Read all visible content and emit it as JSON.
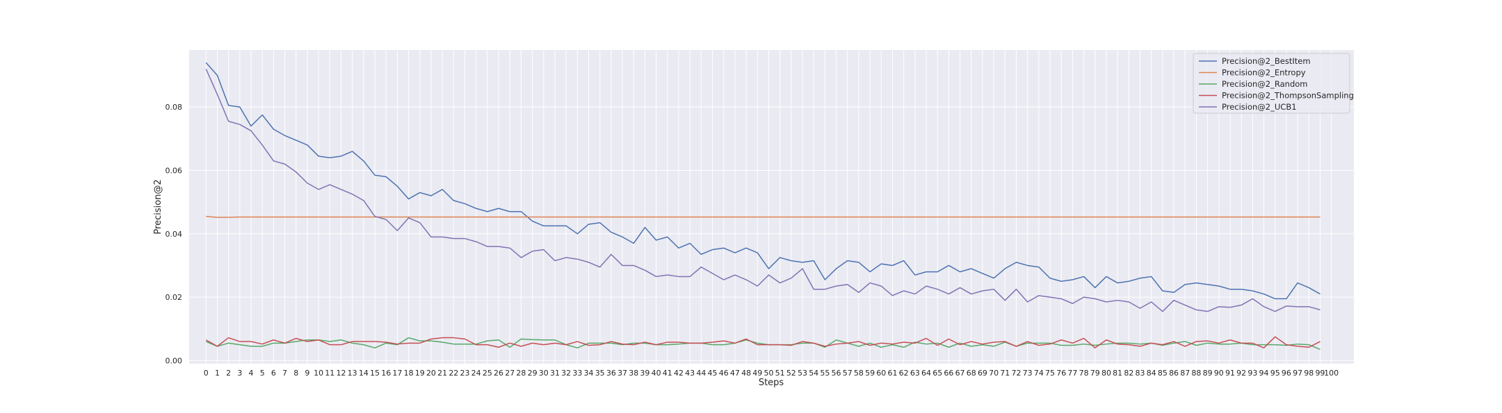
{
  "chart_data": {
    "type": "line",
    "xlabel": "Steps",
    "ylabel": "Precision@2",
    "xlim": [
      -1.5,
      102
    ],
    "ylim": [
      -0.001,
      0.098
    ],
    "x_ticks": [
      0,
      1,
      2,
      3,
      4,
      5,
      6,
      7,
      8,
      9,
      10,
      11,
      12,
      13,
      14,
      15,
      16,
      17,
      18,
      19,
      20,
      21,
      22,
      23,
      24,
      25,
      26,
      27,
      28,
      29,
      30,
      31,
      32,
      33,
      34,
      35,
      36,
      37,
      38,
      39,
      40,
      41,
      42,
      43,
      44,
      45,
      46,
      47,
      48,
      49,
      50,
      51,
      52,
      53,
      54,
      55,
      56,
      57,
      58,
      59,
      60,
      61,
      62,
      63,
      64,
      65,
      66,
      67,
      68,
      69,
      70,
      71,
      72,
      73,
      74,
      75,
      76,
      77,
      78,
      79,
      80,
      81,
      82,
      83,
      84,
      85,
      86,
      87,
      88,
      89,
      90,
      91,
      92,
      93,
      94,
      95,
      96,
      97,
      98,
      99,
      100
    ],
    "y_ticks": [
      0.0,
      0.02,
      0.04,
      0.06,
      0.08
    ],
    "y_tick_labels": [
      "0.00",
      "0.02",
      "0.04",
      "0.06",
      "0.08"
    ],
    "grid": true,
    "legend_position": "top-right",
    "background": "#eaeaf2",
    "series": [
      {
        "name": "Precision@2_BestItem",
        "color": "#4c72b0",
        "values": [
          0.094,
          0.09,
          0.0805,
          0.08,
          0.074,
          0.0775,
          0.073,
          0.071,
          0.0695,
          0.068,
          0.0645,
          0.064,
          0.0645,
          0.066,
          0.063,
          0.0585,
          0.058,
          0.055,
          0.051,
          0.053,
          0.052,
          0.054,
          0.0505,
          0.0495,
          0.048,
          0.047,
          0.048,
          0.047,
          0.047,
          0.044,
          0.0425,
          0.0425,
          0.0425,
          0.04,
          0.043,
          0.0435,
          0.0405,
          0.039,
          0.037,
          0.042,
          0.038,
          0.039,
          0.0355,
          0.037,
          0.0335,
          0.035,
          0.0355,
          0.034,
          0.0355,
          0.034,
          0.029,
          0.0325,
          0.0315,
          0.031,
          0.0315,
          0.0255,
          0.029,
          0.0315,
          0.031,
          0.028,
          0.0305,
          0.03,
          0.0315,
          0.027,
          0.028,
          0.028,
          0.03,
          0.028,
          0.029,
          0.0275,
          0.026,
          0.029,
          0.031,
          0.03,
          0.0295,
          0.026,
          0.025,
          0.0255,
          0.0265,
          0.023,
          0.0265,
          0.0245,
          0.025,
          0.026,
          0.0265,
          0.022,
          0.0215,
          0.024,
          0.0245,
          0.024,
          0.0235,
          0.0225,
          0.0225,
          0.022,
          0.021,
          0.0195,
          0.0195,
          0.0245,
          0.023,
          0.021
        ]
      },
      {
        "name": "Precision@2_Entropy",
        "color": "#dd8452",
        "values": [
          0.0455,
          0.0452,
          0.0452,
          0.0453,
          0.0453,
          0.0453,
          0.0453,
          0.0453,
          0.0453,
          0.0453,
          0.0453,
          0.0453,
          0.0453,
          0.0453,
          0.0453,
          0.0453,
          0.0453,
          0.0453,
          0.0453,
          0.0453,
          0.0453,
          0.0453,
          0.0453,
          0.0453,
          0.0453,
          0.0453,
          0.0453,
          0.0453,
          0.0453,
          0.0453,
          0.0453,
          0.0453,
          0.0453,
          0.0453,
          0.0453,
          0.0453,
          0.0453,
          0.0453,
          0.0453,
          0.0453,
          0.0453,
          0.0453,
          0.0453,
          0.0453,
          0.0453,
          0.0453,
          0.0453,
          0.0453,
          0.0453,
          0.0453,
          0.0453,
          0.0453,
          0.0453,
          0.0453,
          0.0453,
          0.0453,
          0.0453,
          0.0453,
          0.0453,
          0.0453,
          0.0453,
          0.0453,
          0.0453,
          0.0453,
          0.0453,
          0.0453,
          0.0453,
          0.0453,
          0.0453,
          0.0453,
          0.0453,
          0.0453,
          0.0453,
          0.0453,
          0.0453,
          0.0453,
          0.0453,
          0.0453,
          0.0453,
          0.0453,
          0.0453,
          0.0453,
          0.0453,
          0.0453,
          0.0453,
          0.0453,
          0.0453,
          0.0453,
          0.0453,
          0.0453,
          0.0453,
          0.0453,
          0.0453,
          0.0453,
          0.0453,
          0.0453,
          0.0453,
          0.0453,
          0.0453,
          0.0453
        ]
      },
      {
        "name": "Precision@2_Random",
        "color": "#55a868",
        "values": [
          0.006,
          0.0045,
          0.0055,
          0.005,
          0.0045,
          0.0045,
          0.0055,
          0.0055,
          0.006,
          0.0065,
          0.0065,
          0.006,
          0.0065,
          0.0055,
          0.005,
          0.004,
          0.0055,
          0.005,
          0.0072,
          0.0062,
          0.0062,
          0.0058,
          0.0052,
          0.0052,
          0.0052,
          0.0062,
          0.0065,
          0.0042,
          0.0068,
          0.0066,
          0.0065,
          0.0065,
          0.005,
          0.004,
          0.0055,
          0.0055,
          0.0055,
          0.005,
          0.0055,
          0.0055,
          0.005,
          0.005,
          0.0052,
          0.0055,
          0.0055,
          0.005,
          0.005,
          0.0055,
          0.0065,
          0.0055,
          0.005,
          0.005,
          0.005,
          0.0055,
          0.0055,
          0.0042,
          0.0065,
          0.0055,
          0.0045,
          0.0055,
          0.0042,
          0.005,
          0.0042,
          0.0058,
          0.0052,
          0.0055,
          0.0042,
          0.0055,
          0.0045,
          0.005,
          0.0045,
          0.0058,
          0.0045,
          0.0055,
          0.0055,
          0.0055,
          0.0048,
          0.0048,
          0.0052,
          0.0048,
          0.0052,
          0.0055,
          0.0055,
          0.0052,
          0.0055,
          0.0048,
          0.0055,
          0.006,
          0.0048,
          0.0055,
          0.0052,
          0.0052,
          0.0055,
          0.005,
          0.005,
          0.005,
          0.0048,
          0.0052,
          0.005,
          0.0035
        ]
      },
      {
        "name": "Precision@2_ThompsonSampling",
        "color": "#c44e52",
        "values": [
          0.0065,
          0.0045,
          0.0072,
          0.006,
          0.006,
          0.0052,
          0.0065,
          0.0055,
          0.007,
          0.006,
          0.0065,
          0.005,
          0.005,
          0.006,
          0.006,
          0.006,
          0.0058,
          0.0052,
          0.0055,
          0.0055,
          0.0068,
          0.0072,
          0.0072,
          0.0068,
          0.005,
          0.005,
          0.0042,
          0.0055,
          0.0045,
          0.0055,
          0.005,
          0.0055,
          0.005,
          0.006,
          0.0048,
          0.005,
          0.006,
          0.0052,
          0.005,
          0.0058,
          0.005,
          0.0058,
          0.0058,
          0.0055,
          0.0055,
          0.0058,
          0.0062,
          0.0055,
          0.0068,
          0.005,
          0.005,
          0.005,
          0.0048,
          0.006,
          0.0055,
          0.0045,
          0.0052,
          0.0055,
          0.006,
          0.0048,
          0.0055,
          0.0052,
          0.0058,
          0.0055,
          0.007,
          0.0048,
          0.0068,
          0.005,
          0.006,
          0.0052,
          0.0058,
          0.006,
          0.0045,
          0.006,
          0.0048,
          0.0052,
          0.0065,
          0.0055,
          0.007,
          0.004,
          0.0065,
          0.0052,
          0.005,
          0.0045,
          0.0055,
          0.005,
          0.006,
          0.0045,
          0.006,
          0.0062,
          0.0055,
          0.0065,
          0.0055,
          0.0055,
          0.004,
          0.0075,
          0.005,
          0.0045,
          0.0042,
          0.006
        ]
      },
      {
        "name": "Precision@2_UCB1",
        "color": "#8172b3",
        "values": [
          0.092,
          0.084,
          0.0755,
          0.0745,
          0.0725,
          0.068,
          0.063,
          0.062,
          0.0595,
          0.056,
          0.054,
          0.0555,
          0.054,
          0.0525,
          0.0505,
          0.0455,
          0.0445,
          0.041,
          0.045,
          0.0435,
          0.039,
          0.039,
          0.0385,
          0.0385,
          0.0375,
          0.036,
          0.036,
          0.0355,
          0.0325,
          0.0345,
          0.035,
          0.0315,
          0.0325,
          0.032,
          0.031,
          0.0295,
          0.0335,
          0.03,
          0.03,
          0.0285,
          0.0265,
          0.027,
          0.0265,
          0.0265,
          0.0295,
          0.0275,
          0.0255,
          0.027,
          0.0255,
          0.0235,
          0.027,
          0.0245,
          0.026,
          0.029,
          0.0225,
          0.0225,
          0.0235,
          0.024,
          0.0215,
          0.0245,
          0.0235,
          0.0205,
          0.022,
          0.021,
          0.0235,
          0.0225,
          0.021,
          0.023,
          0.021,
          0.022,
          0.0225,
          0.019,
          0.0225,
          0.0185,
          0.0205,
          0.02,
          0.0195,
          0.018,
          0.02,
          0.0195,
          0.0185,
          0.019,
          0.0185,
          0.0165,
          0.0185,
          0.0155,
          0.019,
          0.0175,
          0.016,
          0.0155,
          0.017,
          0.0168,
          0.0175,
          0.0195,
          0.017,
          0.0155,
          0.0172,
          0.017,
          0.017,
          0.016
        ]
      }
    ]
  }
}
